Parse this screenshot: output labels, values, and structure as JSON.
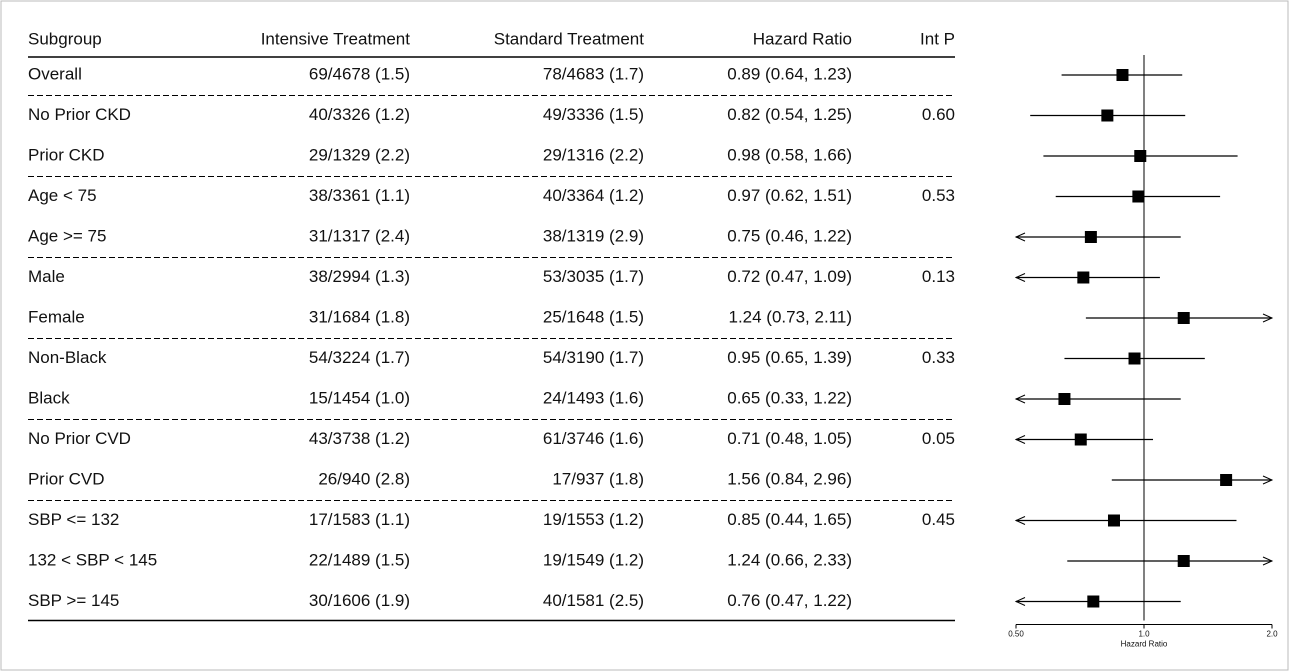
{
  "chart_data": {
    "type": "forest",
    "columns": [
      "Subgroup",
      "Intensive Treatment",
      "Standard Treatment",
      "Hazard Ratio",
      "Int P"
    ],
    "categories": [
      "Overall",
      "No Prior CKD",
      "Prior CKD",
      "Age < 75",
      "Age >= 75",
      "Male",
      "Female",
      "Non-Black",
      "Black",
      "No Prior CVD",
      "Prior CVD",
      "SBP <= 132",
      "132 < SBP < 145",
      "SBP >= 145"
    ],
    "intensive": [
      "69/4678 (1.5)",
      "40/3326 (1.2)",
      "29/1329 (2.2)",
      "38/3361 (1.1)",
      "31/1317 (2.4)",
      "38/2994 (1.3)",
      "31/1684 (1.8)",
      "54/3224 (1.7)",
      "15/1454 (1.0)",
      "43/3738 (1.2)",
      "26/940 (2.8)",
      "17/1583 (1.1)",
      "22/1489 (1.5)",
      "30/1606 (1.9)"
    ],
    "standard": [
      "78/4683 (1.7)",
      "49/3336 (1.5)",
      "29/1316 (2.2)",
      "40/3364 (1.2)",
      "38/1319 (2.9)",
      "53/3035 (1.7)",
      "25/1648 (1.5)",
      "54/3190 (1.7)",
      "24/1493 (1.6)",
      "61/3746 (1.6)",
      "17/937 (1.8)",
      "19/1553 (1.2)",
      "19/1549 (1.2)",
      "40/1581 (2.5)"
    ],
    "values": [
      0.89,
      0.82,
      0.98,
      0.97,
      0.75,
      0.72,
      1.24,
      0.95,
      0.65,
      0.71,
      1.56,
      0.85,
      1.24,
      0.76
    ],
    "lower": [
      0.64,
      0.54,
      0.58,
      0.62,
      0.46,
      0.47,
      0.73,
      0.65,
      0.33,
      0.48,
      0.84,
      0.44,
      0.66,
      0.47
    ],
    "upper": [
      1.23,
      1.25,
      1.66,
      1.51,
      1.22,
      1.09,
      2.11,
      1.39,
      1.22,
      1.05,
      2.96,
      1.65,
      2.33,
      1.22
    ],
    "value_labels": [
      "0.89 (0.64, 1.23)",
      "0.82 (0.54, 1.25)",
      "0.98 (0.58, 1.66)",
      "0.97 (0.62, 1.51)",
      "0.75 (0.46, 1.22)",
      "0.72 (0.47, 1.09)",
      "1.24 (0.73, 2.11)",
      "0.95 (0.65, 1.39)",
      "0.65 (0.33, 1.22)",
      "0.71 (0.48, 1.05)",
      "1.56 (0.84, 2.96)",
      "0.85 (0.44, 1.65)",
      "1.24 (0.66, 2.33)",
      "0.76 (0.47, 1.22)"
    ],
    "interaction_p": [
      null,
      "0.60",
      null,
      "0.53",
      null,
      "0.13",
      null,
      "0.33",
      null,
      "0.05",
      null,
      "0.45",
      null,
      null
    ],
    "xlim": [
      0.5,
      2.0
    ],
    "xticks": [
      {
        "value": 0.5,
        "label": "0.50"
      },
      {
        "value": 1,
        "label": "1.0"
      },
      {
        "value": 2,
        "label": "2.0"
      }
    ],
    "xlabel": "Hazard Ratio",
    "log_scale": true,
    "reference_line": 1,
    "color": "#000000"
  }
}
